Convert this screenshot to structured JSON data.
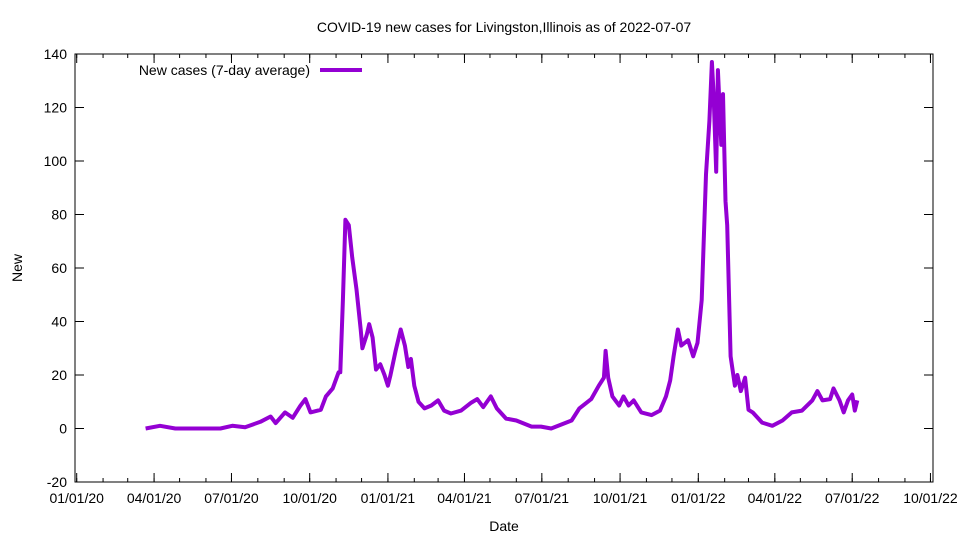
{
  "chart_data": {
    "type": "line",
    "title": "COVID-19 new cases for Livingston,Illinois as of 2022-07-07",
    "xlabel": "Date",
    "ylabel": "New",
    "x_origin": "2020-01-01",
    "x_unit": "days since 2020-01-01",
    "xlim": [
      -2,
      1007
    ],
    "ylim": [
      -20,
      140
    ],
    "yticks": [
      -20,
      0,
      20,
      40,
      60,
      80,
      100,
      120,
      140
    ],
    "xticks": [
      {
        "day": 0,
        "label": "01/01/20"
      },
      {
        "day": 91,
        "label": "04/01/20"
      },
      {
        "day": 182,
        "label": "07/01/20"
      },
      {
        "day": 274,
        "label": "10/01/20"
      },
      {
        "day": 366,
        "label": "01/01/21"
      },
      {
        "day": 456,
        "label": "04/01/21"
      },
      {
        "day": 547,
        "label": "07/01/21"
      },
      {
        "day": 639,
        "label": "10/01/21"
      },
      {
        "day": 731,
        "label": "01/01/22"
      },
      {
        "day": 821,
        "label": "04/01/22"
      },
      {
        "day": 912,
        "label": "07/01/22"
      },
      {
        "day": 1004,
        "label": "10/01/22"
      }
    ],
    "grid": false,
    "legend_position": "top-left",
    "series": [
      {
        "name": "New cases (7-day average)",
        "color": "#9400d3",
        "points": [
          [
            81,
            0
          ],
          [
            98,
            1
          ],
          [
            116,
            0
          ],
          [
            169,
            0
          ],
          [
            183,
            1
          ],
          [
            198,
            0.5
          ],
          [
            216,
            2.5
          ],
          [
            228,
            4.5
          ],
          [
            234,
            2
          ],
          [
            245,
            6
          ],
          [
            254,
            4
          ],
          [
            263,
            8.5
          ],
          [
            269,
            11
          ],
          [
            275,
            6
          ],
          [
            287,
            7
          ],
          [
            293,
            12
          ],
          [
            301,
            15
          ],
          [
            308,
            21
          ],
          [
            310,
            21
          ],
          [
            313,
            48
          ],
          [
            316,
            78
          ],
          [
            320,
            76
          ],
          [
            324,
            64
          ],
          [
            329,
            52
          ],
          [
            334,
            37
          ],
          [
            336,
            30
          ],
          [
            341,
            35
          ],
          [
            344,
            39
          ],
          [
            348,
            34
          ],
          [
            352,
            22
          ],
          [
            357,
            24
          ],
          [
            362,
            20
          ],
          [
            366,
            16
          ],
          [
            369,
            20
          ],
          [
            375,
            29
          ],
          [
            381,
            37
          ],
          [
            386,
            31
          ],
          [
            390,
            23
          ],
          [
            393,
            26
          ],
          [
            397,
            16
          ],
          [
            402,
            10
          ],
          [
            409,
            7.5
          ],
          [
            417,
            8.6
          ],
          [
            425,
            10.5
          ],
          [
            432,
            6.7
          ],
          [
            440,
            5.6
          ],
          [
            452,
            6.7
          ],
          [
            464,
            9.7
          ],
          [
            471,
            11
          ],
          [
            478,
            8
          ],
          [
            487,
            12
          ],
          [
            494,
            7.5
          ],
          [
            505,
            3.7
          ],
          [
            517,
            3
          ],
          [
            535,
            0.7
          ],
          [
            546,
            0.7
          ],
          [
            558,
            0
          ],
          [
            570,
            1.5
          ],
          [
            582,
            3
          ],
          [
            591,
            7.5
          ],
          [
            605,
            11
          ],
          [
            614,
            16
          ],
          [
            620,
            19
          ],
          [
            622,
            29
          ],
          [
            625,
            19
          ],
          [
            630,
            12
          ],
          [
            638,
            8.6
          ],
          [
            643,
            12
          ],
          [
            649,
            8.6
          ],
          [
            655,
            10.5
          ],
          [
            664,
            6
          ],
          [
            676,
            5
          ],
          [
            686,
            6.7
          ],
          [
            693,
            12
          ],
          [
            698,
            18
          ],
          [
            702,
            27
          ],
          [
            707,
            37
          ],
          [
            711,
            31
          ],
          [
            719,
            33
          ],
          [
            725,
            27
          ],
          [
            730,
            32
          ],
          [
            735,
            48
          ],
          [
            740,
            95
          ],
          [
            744,
            115
          ],
          [
            747,
            137
          ],
          [
            749,
            125
          ],
          [
            752,
            96
          ],
          [
            754,
            134
          ],
          [
            758,
            106
          ],
          [
            760,
            125
          ],
          [
            763,
            85
          ],
          [
            765,
            76
          ],
          [
            769,
            27
          ],
          [
            774,
            16
          ],
          [
            777,
            20
          ],
          [
            781,
            14
          ],
          [
            786,
            19
          ],
          [
            790,
            7
          ],
          [
            795,
            6
          ],
          [
            806,
            2.2
          ],
          [
            818,
            1
          ],
          [
            830,
            3
          ],
          [
            841,
            6
          ],
          [
            853,
            6.7
          ],
          [
            865,
            10.5
          ],
          [
            871,
            14
          ],
          [
            877,
            10.5
          ],
          [
            886,
            11
          ],
          [
            890,
            15
          ],
          [
            897,
            10.5
          ],
          [
            902,
            6
          ],
          [
            907,
            10.5
          ],
          [
            912,
            12.7
          ],
          [
            915,
            6.7
          ],
          [
            918,
            10.5
          ]
        ]
      }
    ]
  }
}
